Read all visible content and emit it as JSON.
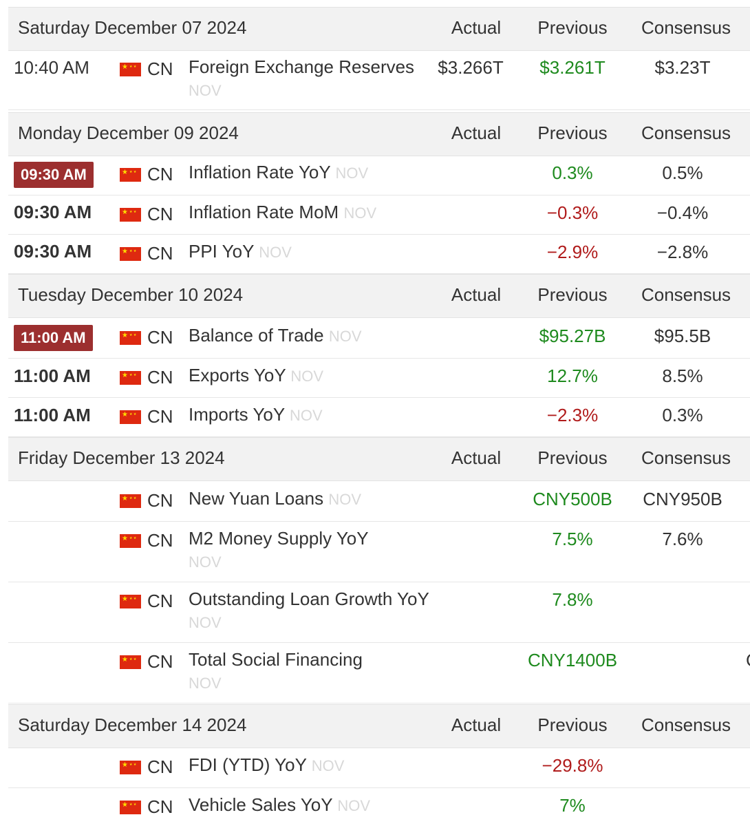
{
  "headers": {
    "actual": "Actual",
    "previous": "Previous",
    "consensus": "Consensus"
  },
  "sections": [
    {
      "date": "Saturday December 07 2024"
    },
    {
      "date": "Monday December 09 2024"
    },
    {
      "date": "Tuesday December 10 2024"
    },
    {
      "date": "Friday December 13 2024"
    },
    {
      "date": "Saturday December 14 2024"
    }
  ],
  "rows": [
    {
      "time": "10:40 AM",
      "country": "CN",
      "event": "Foreign Exchange Reserves",
      "ref": "NOV",
      "actual": "$3.266T",
      "previous": "$3.261T",
      "consensus": "$3.23T"
    },
    {
      "time": "09:30 AM",
      "country": "CN",
      "event": "Inflation Rate YoY",
      "ref": "NOV",
      "actual": "",
      "previous": "0.3%",
      "consensus": "0.5%"
    },
    {
      "time": "09:30 AM",
      "country": "CN",
      "event": "Inflation Rate MoM",
      "ref": "NOV",
      "actual": "",
      "previous": "-0.3%",
      "consensus": "-0.4%"
    },
    {
      "time": "09:30 AM",
      "country": "CN",
      "event": "PPI YoY",
      "ref": "NOV",
      "actual": "",
      "previous": "-2.9%",
      "consensus": "-2.8%"
    },
    {
      "time": "11:00 AM",
      "country": "CN",
      "event": "Balance of Trade",
      "ref": "NOV",
      "actual": "",
      "previous": "$95.27B",
      "consensus": "$95.5B"
    },
    {
      "time": "11:00 AM",
      "country": "CN",
      "event": "Exports YoY",
      "ref": "NOV",
      "actual": "",
      "previous": "12.7%",
      "consensus": "8.5%"
    },
    {
      "time": "11:00 AM",
      "country": "CN",
      "event": "Imports YoY",
      "ref": "NOV",
      "actual": "",
      "previous": "-2.3%",
      "consensus": "0.3%"
    },
    {
      "time": "",
      "country": "CN",
      "event": "New Yuan Loans",
      "ref": "NOV",
      "actual": "",
      "previous": "CNY500B",
      "consensus": "CNY950B"
    },
    {
      "time": "",
      "country": "CN",
      "event": "M2 Money Supply YoY",
      "ref": "NOV",
      "actual": "",
      "previous": "7.5%",
      "consensus": "7.6%"
    },
    {
      "time": "",
      "country": "CN",
      "event": "Outstanding Loan Growth YoY",
      "ref": "NOV",
      "actual": "",
      "previous": "7.8%",
      "consensus": ""
    },
    {
      "time": "",
      "country": "CN",
      "event": "Total Social Financing",
      "ref": "NOV",
      "actual": "",
      "previous": "CNY1400B",
      "consensus": "",
      "edge": "C"
    },
    {
      "time": "",
      "country": "CN",
      "event": "FDI (YTD) YoY",
      "ref": "NOV",
      "actual": "",
      "previous": "-29.8%",
      "consensus": ""
    },
    {
      "time": "",
      "country": "CN",
      "event": "Vehicle Sales YoY",
      "ref": "NOV",
      "actual": "",
      "previous": "7%",
      "consensus": ""
    }
  ],
  "colors": {
    "positive": "#1e8a1e",
    "negative": "#b01b1b",
    "time_badge": "#9c2f2f",
    "reference": "#d8d8d8"
  }
}
